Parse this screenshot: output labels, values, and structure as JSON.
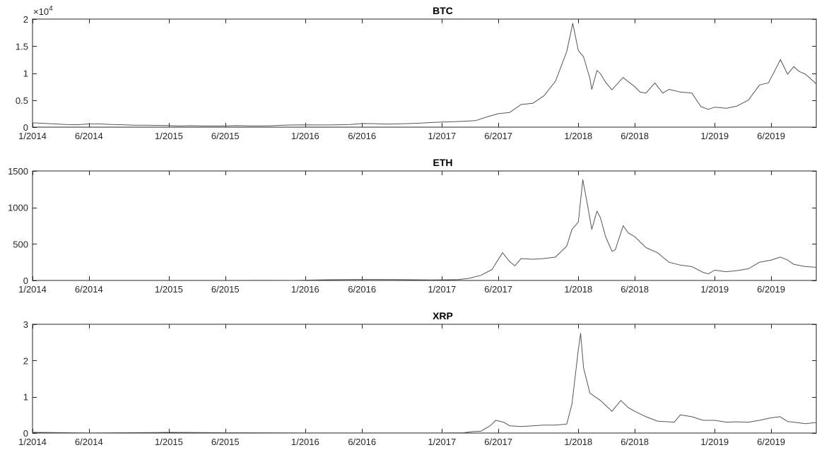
{
  "chart_data": [
    {
      "type": "line",
      "title": "BTC",
      "xlabel": "",
      "ylabel": "",
      "y_exponent_label": "×10",
      "y_exponent_power": "4",
      "xlim": [
        "2014-01-01",
        "2019-09-30"
      ],
      "ylim": [
        0,
        2
      ],
      "y_ticks": [
        0,
        0.5,
        1,
        1.5,
        2
      ],
      "y_tick_labels": [
        "0",
        "0.5",
        "1",
        "1.5",
        "2"
      ],
      "x_tick_labels": [
        "1/2014",
        "6/2014",
        "1/2015",
        "6/2015",
        "1/2016",
        "6/2016",
        "1/2017",
        "6/2017",
        "1/2018",
        "6/2018",
        "1/2019",
        "6/2019"
      ],
      "x_ticks": [
        "2014-01-01",
        "2014-06-01",
        "2015-01-01",
        "2015-06-01",
        "2016-01-01",
        "2016-06-01",
        "2017-01-01",
        "2017-06-01",
        "2018-01-01",
        "2018-06-01",
        "2019-01-01",
        "2019-06-01"
      ],
      "grid": false,
      "color": "#555555",
      "series": [
        {
          "x": [
            "2014-01-01",
            "2014-02-01",
            "2014-03-01",
            "2014-04-01",
            "2014-05-01",
            "2014-06-01",
            "2014-07-01",
            "2014-08-01",
            "2014-09-01",
            "2014-10-01",
            "2014-11-01",
            "2014-12-01",
            "2015-01-01",
            "2015-02-01",
            "2015-03-01",
            "2015-04-01",
            "2015-05-01",
            "2015-06-01",
            "2015-07-01",
            "2015-08-01",
            "2015-09-01",
            "2015-10-01",
            "2015-11-01",
            "2015-12-01",
            "2016-01-01",
            "2016-02-01",
            "2016-03-01",
            "2016-04-01",
            "2016-05-01",
            "2016-06-01",
            "2016-07-01",
            "2016-08-01",
            "2016-09-01",
            "2016-10-01",
            "2016-11-01",
            "2016-12-01",
            "2017-01-01",
            "2017-02-01",
            "2017-03-01",
            "2017-04-01",
            "2017-05-01",
            "2017-06-01",
            "2017-07-01",
            "2017-08-01",
            "2017-09-01",
            "2017-10-01",
            "2017-11-01",
            "2017-12-01",
            "2017-12-17",
            "2018-01-01",
            "2018-01-15",
            "2018-02-01",
            "2018-02-06",
            "2018-02-20",
            "2018-03-01",
            "2018-03-15",
            "2018-04-01",
            "2018-04-15",
            "2018-05-01",
            "2018-05-15",
            "2018-06-01",
            "2018-06-15",
            "2018-07-01",
            "2018-07-25",
            "2018-08-15",
            "2018-09-01",
            "2018-10-01",
            "2018-11-01",
            "2018-11-25",
            "2018-12-15",
            "2019-01-01",
            "2019-02-01",
            "2019-03-01",
            "2019-04-01",
            "2019-05-01",
            "2019-05-25",
            "2019-06-15",
            "2019-06-26",
            "2019-07-15",
            "2019-08-01",
            "2019-08-15",
            "2019-09-01",
            "2019-09-30"
          ],
          "values": [
            0.08,
            0.07,
            0.06,
            0.05,
            0.045,
            0.06,
            0.06,
            0.05,
            0.045,
            0.035,
            0.037,
            0.033,
            0.03,
            0.024,
            0.027,
            0.023,
            0.024,
            0.023,
            0.029,
            0.025,
            0.023,
            0.026,
            0.035,
            0.04,
            0.043,
            0.04,
            0.041,
            0.044,
            0.05,
            0.067,
            0.065,
            0.058,
            0.06,
            0.065,
            0.073,
            0.085,
            0.096,
            0.1,
            0.11,
            0.12,
            0.19,
            0.25,
            0.27,
            0.42,
            0.44,
            0.58,
            0.85,
            1.4,
            1.92,
            1.42,
            1.3,
            0.9,
            0.7,
            1.05,
            0.99,
            0.83,
            0.69,
            0.8,
            0.92,
            0.84,
            0.75,
            0.65,
            0.63,
            0.82,
            0.63,
            0.7,
            0.65,
            0.63,
            0.38,
            0.33,
            0.37,
            0.35,
            0.39,
            0.5,
            0.78,
            0.82,
            1.1,
            1.25,
            0.98,
            1.12,
            1.03,
            0.98,
            0.8
          ]
        }
      ]
    },
    {
      "type": "line",
      "title": "ETH",
      "xlabel": "",
      "ylabel": "",
      "xlim": [
        "2014-01-01",
        "2019-09-30"
      ],
      "ylim": [
        0,
        1500
      ],
      "y_ticks": [
        0,
        500,
        1000,
        1500
      ],
      "y_tick_labels": [
        "0",
        "500",
        "1000",
        "1500"
      ],
      "x_tick_labels": [
        "1/2014",
        "6/2014",
        "1/2015",
        "6/2015",
        "1/2016",
        "6/2016",
        "1/2017",
        "6/2017",
        "1/2018",
        "6/2018",
        "1/2019",
        "6/2019"
      ],
      "x_ticks": [
        "2014-01-01",
        "2014-06-01",
        "2015-01-01",
        "2015-06-01",
        "2016-01-01",
        "2016-06-01",
        "2017-01-01",
        "2017-06-01",
        "2018-01-01",
        "2018-06-01",
        "2019-01-01",
        "2019-06-01"
      ],
      "grid": false,
      "color": "#555555",
      "series": [
        {
          "x": [
            "2015-08-07",
            "2015-12-01",
            "2016-03-01",
            "2016-06-15",
            "2016-09-01",
            "2016-12-01",
            "2017-01-01",
            "2017-02-15",
            "2017-03-15",
            "2017-04-15",
            "2017-05-15",
            "2017-06-12",
            "2017-07-01",
            "2017-07-15",
            "2017-08-01",
            "2017-09-01",
            "2017-10-01",
            "2017-11-01",
            "2017-12-01",
            "2017-12-15",
            "2018-01-01",
            "2018-01-13",
            "2018-01-25",
            "2018-02-06",
            "2018-02-20",
            "2018-03-01",
            "2018-03-15",
            "2018-04-01",
            "2018-04-10",
            "2018-05-01",
            "2018-05-15",
            "2018-06-01",
            "2018-07-01",
            "2018-08-01",
            "2018-09-01",
            "2018-10-01",
            "2018-11-01",
            "2018-12-01",
            "2018-12-15",
            "2019-01-01",
            "2019-02-01",
            "2019-03-01",
            "2019-04-01",
            "2019-05-01",
            "2019-06-01",
            "2019-06-26",
            "2019-07-15",
            "2019-08-01",
            "2019-09-01",
            "2019-09-30"
          ],
          "values": [
            3,
            1,
            10,
            14,
            12,
            8,
            9,
            12,
            30,
            70,
            150,
            380,
            260,
            200,
            300,
            290,
            300,
            320,
            470,
            700,
            800,
            1380,
            1050,
            700,
            950,
            860,
            600,
            400,
            420,
            750,
            650,
            600,
            450,
            380,
            250,
            210,
            190,
            110,
            90,
            140,
            120,
            135,
            160,
            250,
            280,
            320,
            280,
            220,
            190,
            180
          ]
        }
      ]
    },
    {
      "type": "line",
      "title": "XRP",
      "xlabel": "",
      "ylabel": "",
      "xlim": [
        "2014-01-01",
        "2019-09-30"
      ],
      "ylim": [
        0,
        3
      ],
      "y_ticks": [
        0,
        1,
        2,
        3
      ],
      "y_tick_labels": [
        "0",
        "1",
        "2",
        "3"
      ],
      "x_tick_labels": [
        "1/2014",
        "6/2014",
        "1/2015",
        "6/2015",
        "1/2016",
        "6/2016",
        "1/2017",
        "6/2017",
        "1/2018",
        "6/2018",
        "1/2019",
        "6/2019"
      ],
      "x_ticks": [
        "2014-01-01",
        "2014-06-01",
        "2015-01-01",
        "2015-06-01",
        "2016-01-01",
        "2016-06-01",
        "2017-01-01",
        "2017-06-01",
        "2018-01-01",
        "2018-06-01",
        "2019-01-01",
        "2019-06-01"
      ],
      "grid": false,
      "color": "#555555",
      "series": [
        {
          "x": [
            "2014-01-01",
            "2014-06-01",
            "2014-12-01",
            "2015-01-01",
            "2015-06-01",
            "2016-01-01",
            "2016-06-01",
            "2017-01-01",
            "2017-03-01",
            "2017-03-25",
            "2017-04-15",
            "2017-05-10",
            "2017-05-25",
            "2017-06-15",
            "2017-07-01",
            "2017-08-01",
            "2017-09-01",
            "2017-10-01",
            "2017-11-01",
            "2017-12-01",
            "2017-12-15",
            "2018-01-01",
            "2018-01-07",
            "2018-01-15",
            "2018-02-01",
            "2018-02-15",
            "2018-03-01",
            "2018-04-01",
            "2018-04-25",
            "2018-05-15",
            "2018-06-01",
            "2018-07-01",
            "2018-08-01",
            "2018-09-15",
            "2018-10-01",
            "2018-11-01",
            "2018-12-01",
            "2019-01-01",
            "2019-02-01",
            "2019-03-01",
            "2019-04-01",
            "2019-05-01",
            "2019-06-01",
            "2019-06-25",
            "2019-07-15",
            "2019-08-01",
            "2019-09-01",
            "2019-09-30"
          ],
          "values": [
            0.02,
            0.005,
            0.015,
            0.02,
            0.01,
            0.006,
            0.006,
            0.006,
            0.01,
            0.04,
            0.05,
            0.2,
            0.35,
            0.3,
            0.2,
            0.18,
            0.2,
            0.22,
            0.22,
            0.25,
            0.8,
            2.3,
            2.75,
            1.8,
            1.1,
            1.0,
            0.9,
            0.6,
            0.9,
            0.7,
            0.6,
            0.45,
            0.33,
            0.3,
            0.5,
            0.45,
            0.35,
            0.35,
            0.3,
            0.31,
            0.3,
            0.35,
            0.42,
            0.45,
            0.32,
            0.3,
            0.26,
            0.29
          ]
        }
      ]
    }
  ]
}
